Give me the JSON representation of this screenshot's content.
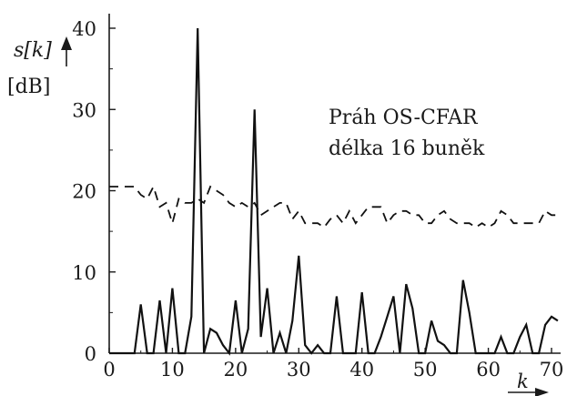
{
  "chart_data": {
    "type": "line",
    "ylabel_main": "s[k]",
    "ylabel_unit": "[dB]",
    "xlabel": "k",
    "annotation": [
      "Práh OS-CFAR",
      "délka 16 buněk"
    ],
    "xlim": [
      0,
      70
    ],
    "ylim": [
      0,
      40
    ],
    "xticks": [
      0,
      10,
      20,
      30,
      40,
      50,
      60,
      70
    ],
    "yticks": [
      0,
      10,
      20,
      30,
      40
    ],
    "grid": false,
    "series": [
      {
        "style": "solid",
        "points": [
          [
            0,
            0
          ],
          [
            1,
            0
          ],
          [
            2,
            0
          ],
          [
            3,
            0
          ],
          [
            4,
            0
          ],
          [
            5,
            6
          ],
          [
            6,
            0
          ],
          [
            7,
            0
          ],
          [
            8,
            6.5
          ],
          [
            9,
            0
          ],
          [
            10,
            8
          ],
          [
            11,
            0
          ],
          [
            12,
            0
          ],
          [
            13,
            4.5
          ],
          [
            14,
            40
          ],
          [
            15,
            0
          ],
          [
            16,
            3
          ],
          [
            17,
            2.5
          ],
          [
            18,
            1
          ],
          [
            19,
            0
          ],
          [
            20,
            6.5
          ],
          [
            21,
            0
          ],
          [
            22,
            3
          ],
          [
            23,
            30
          ],
          [
            24,
            2
          ],
          [
            25,
            8
          ],
          [
            26,
            0
          ],
          [
            27,
            2.5
          ],
          [
            28,
            0
          ],
          [
            29,
            4
          ],
          [
            30,
            12
          ],
          [
            31,
            1
          ],
          [
            32,
            0
          ],
          [
            33,
            1
          ],
          [
            34,
            0
          ],
          [
            35,
            0
          ],
          [
            36,
            7
          ],
          [
            37,
            0
          ],
          [
            38,
            0
          ],
          [
            39,
            0
          ],
          [
            40,
            7.5
          ],
          [
            41,
            0
          ],
          [
            42,
            0
          ],
          [
            43,
            2
          ],
          [
            44,
            4.5
          ],
          [
            45,
            7
          ],
          [
            46,
            0
          ],
          [
            47,
            8.5
          ],
          [
            48,
            5.5
          ],
          [
            49,
            0
          ],
          [
            50,
            0
          ],
          [
            51,
            4
          ],
          [
            52,
            1.5
          ],
          [
            53,
            1
          ],
          [
            54,
            0
          ],
          [
            55,
            0
          ],
          [
            56,
            9
          ],
          [
            57,
            5
          ],
          [
            58,
            0
          ],
          [
            59,
            0
          ],
          [
            60,
            0
          ],
          [
            61,
            0
          ],
          [
            62,
            2
          ],
          [
            63,
            0
          ],
          [
            64,
            0
          ],
          [
            65,
            2
          ],
          [
            66,
            3.5
          ],
          [
            67,
            0
          ],
          [
            68,
            0
          ],
          [
            69,
            3.5
          ],
          [
            70,
            4.5
          ],
          [
            71,
            4
          ]
        ]
      },
      {
        "style": "dashed",
        "points": [
          [
            0,
            20.5
          ],
          [
            1,
            20.5
          ],
          [
            2,
            20.5
          ],
          [
            3,
            20.5
          ],
          [
            4,
            20.5
          ],
          [
            5,
            19.5
          ],
          [
            6,
            19
          ],
          [
            7,
            20.5
          ],
          [
            8,
            18
          ],
          [
            9,
            18.5
          ],
          [
            10,
            16
          ],
          [
            11,
            19
          ],
          [
            12,
            18.5
          ],
          [
            13,
            18.5
          ],
          [
            14,
            19
          ],
          [
            15,
            18.5
          ],
          [
            16,
            20.5
          ],
          [
            17,
            20
          ],
          [
            18,
            19.5
          ],
          [
            19,
            18.5
          ],
          [
            20,
            18
          ],
          [
            21,
            18.5
          ],
          [
            22,
            18
          ],
          [
            23,
            18.5
          ],
          [
            24,
            17
          ],
          [
            25,
            17.5
          ],
          [
            26,
            18
          ],
          [
            27,
            18.5
          ],
          [
            28,
            18.5
          ],
          [
            29,
            16.5
          ],
          [
            30,
            17.5
          ],
          [
            31,
            16
          ],
          [
            32,
            16
          ],
          [
            33,
            16
          ],
          [
            34,
            15.5
          ],
          [
            35,
            16.5
          ],
          [
            36,
            17
          ],
          [
            37,
            16
          ],
          [
            38,
            17.5
          ],
          [
            39,
            16
          ],
          [
            40,
            17
          ],
          [
            41,
            18
          ],
          [
            42,
            18
          ],
          [
            43,
            18
          ],
          [
            44,
            16
          ],
          [
            45,
            17
          ],
          [
            46,
            17.5
          ],
          [
            47,
            17.5
          ],
          [
            48,
            17
          ],
          [
            49,
            17
          ],
          [
            50,
            16
          ],
          [
            51,
            16
          ],
          [
            52,
            17
          ],
          [
            53,
            17.5
          ],
          [
            54,
            16.5
          ],
          [
            55,
            16
          ],
          [
            56,
            16
          ],
          [
            57,
            16
          ],
          [
            58,
            15.5
          ],
          [
            59,
            16
          ],
          [
            60,
            15.5
          ],
          [
            61,
            16
          ],
          [
            62,
            17.5
          ],
          [
            63,
            17
          ],
          [
            64,
            16
          ],
          [
            65,
            16
          ],
          [
            66,
            16
          ],
          [
            67,
            16
          ],
          [
            68,
            16
          ],
          [
            69,
            17.5
          ],
          [
            70,
            17
          ],
          [
            71,
            17
          ]
        ]
      }
    ]
  }
}
